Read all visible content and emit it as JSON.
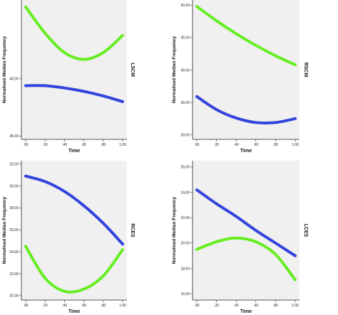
{
  "chart_data": [
    {
      "type": "line",
      "panel_label": "LSCM",
      "xlabel": "Time",
      "ylabel": "Normalised Median Frequency",
      "xlim": [
        0,
        1
      ],
      "ylim": [
        35,
        50
      ],
      "x_ticks": [
        ".00",
        ".20",
        ".40",
        ".60",
        ".80",
        "1.00"
      ],
      "y_ticks": [
        "35.00",
        "40.00"
      ],
      "grid": false,
      "series": [
        {
          "color": "#66ee22",
          "x": [
            0,
            0.2,
            0.4,
            0.6,
            0.8,
            1.0
          ],
          "y": [
            46.3,
            44.0,
            42.3,
            41.7,
            42.3,
            43.8
          ]
        },
        {
          "color": "#3344dd",
          "x": [
            0,
            0.2,
            0.4,
            0.6,
            0.8,
            1.0
          ],
          "y": [
            39.4,
            39.4,
            39.2,
            38.9,
            38.5,
            38.0
          ]
        }
      ]
    },
    {
      "type": "line",
      "panel_label": "RSCM",
      "xlabel": "Time",
      "ylabel": "Normalised Median Frequency",
      "xlim": [
        0,
        1
      ],
      "ylim": [
        29.5,
        51
      ],
      "x_ticks": [
        ".00",
        ".20",
        ".40",
        ".60",
        ".80",
        "1.00"
      ],
      "y_ticks": [
        "30.00",
        "35.00",
        "40.00",
        "45.00",
        "50.00"
      ],
      "grid": false,
      "series": [
        {
          "color": "#66ee22",
          "x": [
            0,
            0.2,
            0.4,
            0.6,
            0.8,
            1.0
          ],
          "y": [
            49.8,
            47.6,
            45.6,
            43.8,
            42.2,
            40.8
          ]
        },
        {
          "color": "#3344dd",
          "x": [
            0,
            0.2,
            0.4,
            0.6,
            0.8,
            1.0
          ],
          "y": [
            35.9,
            33.9,
            32.6,
            31.9,
            31.9,
            32.5
          ]
        }
      ]
    },
    {
      "type": "line",
      "panel_label": "RCES",
      "xlabel": "Time",
      "ylabel": "Normalised Median Frequency",
      "xlim": [
        0,
        1
      ],
      "ylim": [
        19.5,
        32.5
      ],
      "x_ticks": [
        ".00",
        ".20",
        ".40",
        ".60",
        ".80",
        "1.00"
      ],
      "y_ticks": [
        "20.00",
        "22.00",
        "24.00",
        "26.00",
        "28.00",
        "30.00",
        "32.00"
      ],
      "grid": false,
      "series": [
        {
          "color": "#66ee22",
          "x": [
            0,
            0.2,
            0.4,
            0.6,
            0.8,
            1.0
          ],
          "y": [
            24.5,
            21.6,
            20.4,
            20.6,
            21.8,
            24.2
          ]
        },
        {
          "color": "#3344dd",
          "x": [
            0,
            0.2,
            0.4,
            0.6,
            0.8,
            1.0
          ],
          "y": [
            30.9,
            30.4,
            29.5,
            28.2,
            26.6,
            24.7
          ]
        }
      ]
    },
    {
      "type": "line",
      "panel_label": "LCES",
      "xlabel": "Time",
      "ylabel": "Normalised Median Frequency",
      "xlim": [
        0,
        1
      ],
      "ylim": [
        15.5,
        26.5
      ],
      "x_ticks": [
        ".00",
        ".20",
        ".40",
        ".60",
        ".80",
        "1.00"
      ],
      "y_ticks": [
        "16.00",
        "18.00",
        "20.00",
        "22.00",
        "24.00",
        "26.00"
      ],
      "grid": false,
      "series": [
        {
          "color": "#66ee22",
          "x": [
            0,
            0.2,
            0.4,
            0.6,
            0.8,
            1.0
          ],
          "y": [
            19.5,
            20.1,
            20.4,
            20.1,
            19.1,
            17.1
          ]
        },
        {
          "color": "#3344dd",
          "x": [
            0,
            0.2,
            0.4,
            0.6,
            0.8,
            1.0
          ],
          "y": [
            24.2,
            23.1,
            22.1,
            21.0,
            20.0,
            19.0
          ]
        }
      ]
    }
  ],
  "panel_style": {
    "plot_background": "#f0f0f0",
    "axis_color": "#222222"
  }
}
